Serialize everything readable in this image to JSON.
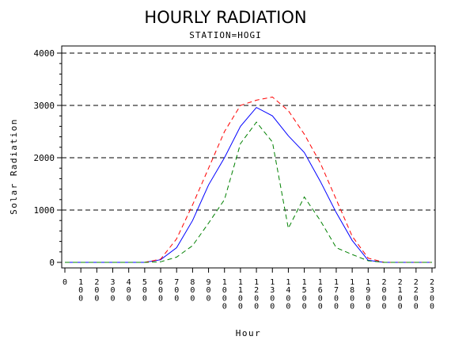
{
  "chart_data": {
    "type": "line",
    "title": "HOURLY RADIATION",
    "subtitle": "STATION=HOGI",
    "xlabel": "Hour",
    "ylabel": "Solar Radiation",
    "ylim": [
      0,
      4000
    ],
    "xlim": [
      0,
      2300
    ],
    "yticks": [
      0,
      1000,
      2000,
      3000,
      4000
    ],
    "ytick_labels": [
      "0",
      "1000",
      "2000",
      "3000",
      "4000"
    ],
    "xticks": [
      0,
      100,
      200,
      300,
      400,
      500,
      600,
      700,
      800,
      900,
      1000,
      1100,
      1200,
      1300,
      1400,
      1500,
      1600,
      1700,
      1800,
      1900,
      2000,
      2100,
      2200,
      2300
    ],
    "xtick_labels": [
      "0",
      "100",
      "200",
      "300",
      "400",
      "500",
      "600",
      "700",
      "800",
      "900",
      "1000",
      "1100",
      "1200",
      "1300",
      "1400",
      "1500",
      "1600",
      "1700",
      "1800",
      "1900",
      "2000",
      "2100",
      "2200",
      "2300"
    ],
    "grid": "horizontal dashed at y ticks",
    "series": [
      {
        "color": "#0000ff",
        "style": "solid",
        "x": [
          0,
          100,
          200,
          300,
          400,
          500,
          600,
          700,
          800,
          900,
          1000,
          1100,
          1200,
          1300,
          1400,
          1500,
          1600,
          1700,
          1800,
          1900,
          2000,
          2100,
          2200,
          2300
        ],
        "y": [
          0,
          0,
          0,
          0,
          0,
          0,
          50,
          280,
          800,
          1480,
          2000,
          2600,
          2960,
          2800,
          2420,
          2100,
          1550,
          950,
          420,
          40,
          0,
          0,
          0,
          0
        ]
      },
      {
        "color": "#ff0000",
        "style": "dashed",
        "x": [
          0,
          100,
          200,
          300,
          400,
          500,
          600,
          700,
          800,
          900,
          1000,
          1100,
          1200,
          1300,
          1400,
          1500,
          1600,
          1700,
          1800,
          1900,
          2000,
          2100,
          2200,
          2300
        ],
        "y": [
          0,
          0,
          0,
          0,
          0,
          0,
          60,
          450,
          1100,
          1800,
          2500,
          3000,
          3100,
          3160,
          2900,
          2450,
          1900,
          1200,
          500,
          80,
          0,
          0,
          0,
          0
        ]
      },
      {
        "color": "#008000",
        "style": "dashed",
        "x": [
          0,
          100,
          200,
          300,
          400,
          500,
          600,
          700,
          800,
          900,
          1000,
          1100,
          1200,
          1300,
          1400,
          1500,
          1600,
          1700,
          1800,
          1900,
          2000,
          2100,
          2200,
          2300
        ],
        "y": [
          0,
          0,
          0,
          0,
          0,
          0,
          10,
          100,
          320,
          750,
          1200,
          2270,
          2680,
          2300,
          650,
          1250,
          800,
          280,
          150,
          30,
          0,
          0,
          0,
          0
        ]
      }
    ]
  }
}
